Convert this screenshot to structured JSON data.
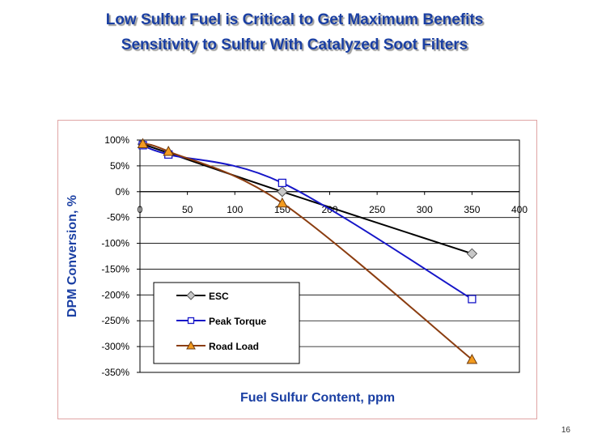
{
  "slide": {
    "title_line1": "Low Sulfur Fuel is Critical to Get Maximum Benefits",
    "title_line2": "Sensitivity to Sulfur With Catalyzed Soot Filters",
    "page_number": "16"
  },
  "colors": {
    "title": "#1a3fa3",
    "axis_label": "#1a3fa3",
    "esc": "#000000",
    "peak": "#1616c8",
    "road": "#8b3d10",
    "road_marker": "#f39b1f",
    "esc_marker": "#c8c8c8"
  },
  "chart_data": {
    "type": "line",
    "title": "",
    "xlabel": "Fuel Sulfur Content, ppm",
    "ylabel": "DPM Conversion, %",
    "xlim": [
      0,
      400
    ],
    "ylim": [
      -350,
      100
    ],
    "x_ticks": [
      0,
      50,
      100,
      150,
      200,
      250,
      300,
      350,
      400
    ],
    "x_tick_labels": [
      "0",
      "50",
      "100",
      "150",
      "200",
      "250",
      "300",
      "350",
      "400"
    ],
    "y_ticks": [
      100,
      50,
      0,
      -50,
      -100,
      -150,
      -200,
      -250,
      -300,
      -350
    ],
    "y_tick_labels": [
      "100%",
      "50%",
      "0%",
      "-50%",
      "-100%",
      "-150%",
      "-200%",
      "-250%",
      "-300%",
      "-350%"
    ],
    "grid": "horizontal",
    "legend_position": "lower-left",
    "series": [
      {
        "name": "ESC",
        "marker": "diamond",
        "x": [
          3,
          30,
          150,
          350
        ],
        "y": [
          92,
          75,
          0,
          -120
        ]
      },
      {
        "name": "Peak Torque",
        "marker": "square",
        "x": [
          3,
          30,
          150,
          350
        ],
        "y": [
          90,
          72,
          17,
          -208
        ]
      },
      {
        "name": "Road Load",
        "marker": "triangle",
        "x": [
          3,
          30,
          150,
          350
        ],
        "y": [
          93,
          78,
          -22,
          -325
        ]
      }
    ]
  }
}
